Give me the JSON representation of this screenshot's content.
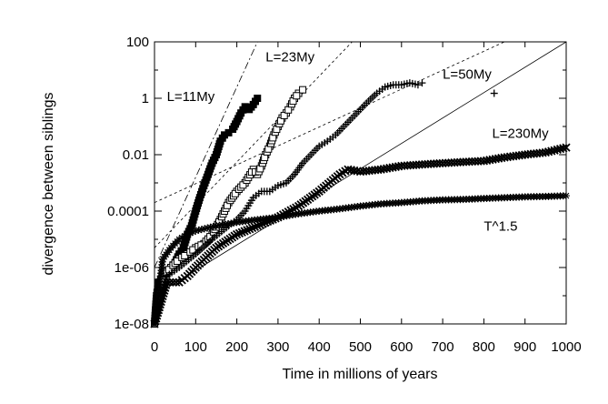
{
  "chart_data": {
    "type": "scatter",
    "xlabel": "Time in millions of years",
    "ylabel": "divergence between siblings",
    "xlim": [
      0,
      1000
    ],
    "ylim": [
      1e-08,
      100
    ],
    "yscale": "log",
    "xticks": [
      0,
      100,
      200,
      300,
      400,
      500,
      600,
      700,
      800,
      900,
      1000
    ],
    "yticks": [
      {
        "value": 1e-08,
        "label": "1e-08"
      },
      {
        "value": 1e-06,
        "label": "1e-06"
      },
      {
        "value": 0.0001,
        "label": "0.0001"
      },
      {
        "value": 0.01,
        "label": "0.01"
      },
      {
        "value": 1,
        "label": "1"
      },
      {
        "value": 100,
        "label": "100"
      }
    ],
    "grid": false,
    "series": [
      {
        "name": "L=11My",
        "marker": "filled-square",
        "color": "#000000",
        "points": [
          [
            0,
            1e-08
          ],
          [
            5,
            1e-07
          ],
          [
            10,
            3e-07
          ],
          [
            20,
            5e-07
          ],
          [
            30,
            6e-07
          ],
          [
            40,
            1e-06
          ],
          [
            50,
            1.5e-06
          ],
          [
            60,
            3e-06
          ],
          [
            70,
            5e-06
          ],
          [
            80,
            1.5e-05
          ],
          [
            90,
            3e-05
          ],
          [
            100,
            0.0001
          ],
          [
            110,
            0.0003
          ],
          [
            120,
            0.0008
          ],
          [
            130,
            0.002
          ],
          [
            140,
            0.005
          ],
          [
            150,
            0.01
          ],
          [
            160,
            0.03
          ],
          [
            170,
            0.05
          ],
          [
            180,
            0.06
          ],
          [
            190,
            0.08
          ],
          [
            200,
            0.15
          ],
          [
            210,
            0.3
          ],
          [
            220,
            0.5
          ],
          [
            230,
            0.4
          ],
          [
            240,
            0.6
          ],
          [
            250,
            1.0
          ]
        ]
      },
      {
        "name": "L=23My",
        "marker": "open-square",
        "color": "#000000",
        "points": [
          [
            0,
            1e-08
          ],
          [
            20,
            5e-07
          ],
          [
            40,
            1e-06
          ],
          [
            60,
            2e-06
          ],
          [
            80,
            3e-06
          ],
          [
            100,
            5e-06
          ],
          [
            120,
            7e-06
          ],
          [
            140,
            1.5e-05
          ],
          [
            160,
            5e-05
          ],
          [
            180,
            0.0002
          ],
          [
            200,
            0.0005
          ],
          [
            220,
            0.001
          ],
          [
            240,
            0.003
          ],
          [
            250,
            0.002
          ],
          [
            260,
            0.004
          ],
          [
            270,
            0.01
          ],
          [
            280,
            0.02
          ],
          [
            290,
            0.05
          ],
          [
            300,
            0.1
          ],
          [
            310,
            0.2
          ],
          [
            320,
            0.3
          ],
          [
            330,
            0.5
          ],
          [
            340,
            1
          ],
          [
            350,
            1.5
          ],
          [
            360,
            2
          ]
        ]
      },
      {
        "name": "L=50My",
        "marker": "plus",
        "color": "#000000",
        "points": [
          [
            0,
            1e-08
          ],
          [
            30,
            5e-07
          ],
          [
            60,
            1e-06
          ],
          [
            100,
            3e-06
          ],
          [
            140,
            1e-05
          ],
          [
            180,
            3e-05
          ],
          [
            200,
            5e-05
          ],
          [
            220,
            0.0001
          ],
          [
            240,
            0.0003
          ],
          [
            260,
            0.0005
          ],
          [
            280,
            0.0005
          ],
          [
            300,
            0.0008
          ],
          [
            320,
            0.001
          ],
          [
            340,
            0.002
          ],
          [
            360,
            0.005
          ],
          [
            380,
            0.01
          ],
          [
            400,
            0.02
          ],
          [
            420,
            0.03
          ],
          [
            440,
            0.05
          ],
          [
            460,
            0.1
          ],
          [
            480,
            0.2
          ],
          [
            500,
            0.4
          ],
          [
            520,
            0.8
          ],
          [
            540,
            1.5
          ],
          [
            560,
            2.5
          ],
          [
            580,
            3
          ],
          [
            600,
            3
          ],
          [
            620,
            3.5
          ],
          [
            640,
            3
          ],
          [
            650,
            3.5
          ],
          [
            825,
            1.5
          ]
        ]
      },
      {
        "name": "L=230My",
        "marker": "cross",
        "color": "#000000",
        "points": [
          [
            0,
            1e-08
          ],
          [
            30,
            3e-07
          ],
          [
            60,
            3e-07
          ],
          [
            80,
            5e-07
          ],
          [
            100,
            1e-06
          ],
          [
            150,
            5e-06
          ],
          [
            200,
            1.5e-05
          ],
          [
            250,
            3e-05
          ],
          [
            300,
            6e-05
          ],
          [
            350,
            0.00015
          ],
          [
            400,
            0.0005
          ],
          [
            450,
            0.002
          ],
          [
            470,
            0.003
          ],
          [
            500,
            0.0025
          ],
          [
            550,
            0.003
          ],
          [
            600,
            0.004
          ],
          [
            650,
            0.0045
          ],
          [
            700,
            0.005
          ],
          [
            750,
            0.0055
          ],
          [
            800,
            0.006
          ],
          [
            850,
            0.008
          ],
          [
            900,
            0.01
          ],
          [
            950,
            0.012
          ],
          [
            1000,
            0.018
          ]
        ]
      },
      {
        "name": "T^1.5",
        "marker": "star",
        "color": "#000000",
        "points": [
          [
            0,
            1e-08
          ],
          [
            20,
            2e-06
          ],
          [
            40,
            5e-06
          ],
          [
            60,
            1e-05
          ],
          [
            80,
            1.5e-05
          ],
          [
            100,
            2e-05
          ],
          [
            150,
            3e-05
          ],
          [
            200,
            4e-05
          ],
          [
            250,
            5e-05
          ],
          [
            300,
            6e-05
          ],
          [
            350,
            8e-05
          ],
          [
            400,
            0.0001
          ],
          [
            450,
            0.00012
          ],
          [
            500,
            0.00015
          ],
          [
            550,
            0.00018
          ],
          [
            600,
            0.0002
          ],
          [
            650,
            0.00023
          ],
          [
            700,
            0.00025
          ],
          [
            750,
            0.00026
          ],
          [
            800,
            0.00028
          ],
          [
            850,
            0.0003
          ],
          [
            900,
            0.00032
          ],
          [
            950,
            0.00033
          ],
          [
            1000,
            0.00035
          ]
        ]
      }
    ],
    "reference_lines": [
      {
        "style": "dash-dot",
        "from": [
          0,
          1e-06
        ],
        "to": [
          250,
          100
        ]
      },
      {
        "style": "dashed",
        "from": [
          0,
          5e-06
        ],
        "to": [
          480,
          100
        ]
      },
      {
        "style": "dashed",
        "from": [
          0,
          0.0002
        ],
        "to": [
          850,
          100
        ]
      },
      {
        "style": "solid",
        "from": [
          0,
          1e-07
        ],
        "to": [
          1000,
          100
        ]
      }
    ],
    "annotations": [
      {
        "text": "L=11My",
        "x": 30,
        "y": 0.8
      },
      {
        "text": "L=23My",
        "x": 270,
        "y": 20
      },
      {
        "text": "L=50My",
        "x": 700,
        "y": 5
      },
      {
        "text": "L=230My",
        "x": 820,
        "y": 0.04
      },
      {
        "text": "T^1.5",
        "x": 800,
        "y": 2e-05
      }
    ]
  }
}
